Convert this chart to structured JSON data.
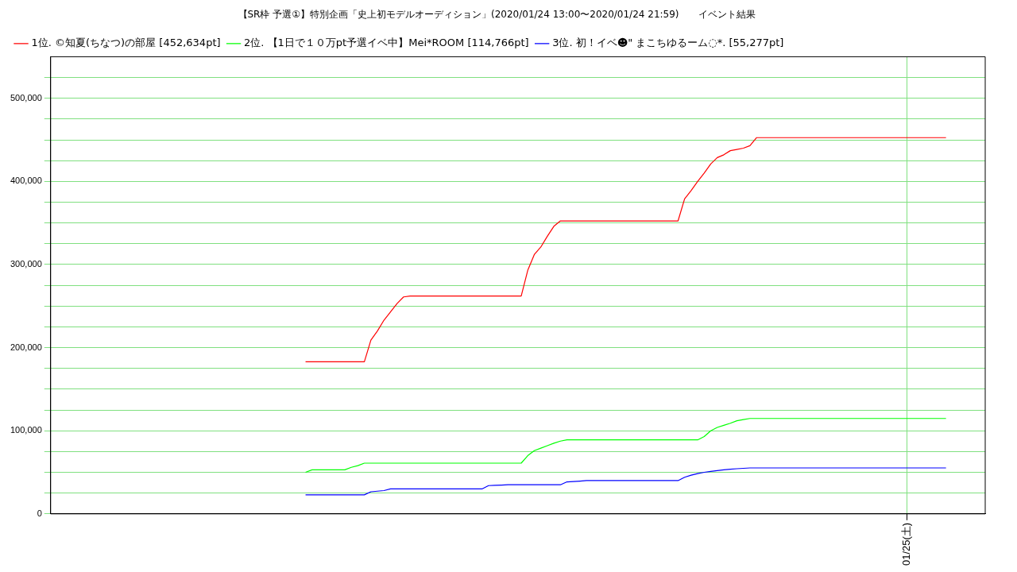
{
  "chart_data": {
    "type": "line",
    "title": "【SR枠 予選①】特別企画「史上初モデルオーディション」(2020/01/24 13:00〜2020/01/24 21:59)　　イベント結果",
    "categories": [
      null,
      null,
      null,
      null,
      null,
      null,
      null,
      null,
      null,
      null,
      null,
      null,
      null,
      null,
      null,
      null,
      null,
      null,
      null,
      null,
      null,
      null,
      null,
      null,
      null,
      null,
      null,
      null,
      null,
      null,
      null,
      null,
      null,
      null,
      null,
      null,
      null,
      null,
      null,
      null,
      null,
      null,
      null,
      null,
      null,
      null,
      null,
      null,
      null,
      null,
      null,
      null,
      null,
      null,
      null,
      null,
      null,
      null,
      null,
      null,
      null,
      null,
      null,
      null,
      null,
      null,
      null,
      null,
      null,
      null,
      null,
      null,
      null,
      null,
      null,
      null,
      null,
      null,
      null,
      null,
      null,
      null,
      null,
      null,
      null,
      null,
      null,
      null,
      null,
      null,
      null,
      null,
      null,
      null,
      null,
      null,
      null,
      null,
      null,
      null,
      null,
      null,
      null,
      null,
      null,
      null,
      null,
      null,
      null,
      null,
      null,
      null,
      null,
      null,
      null,
      null,
      null,
      null,
      null,
      null,
      null,
      null,
      null,
      null,
      null,
      null,
      null,
      null,
      null,
      null,
      null,
      "01/25(土)",
      null,
      null,
      null,
      null,
      null,
      null,
      null,
      null,
      null,
      null,
      null,
      null
    ],
    "ylim": [
      0,
      550000
    ],
    "yticks": [
      {
        "value": 0,
        "label": "0"
      },
      {
        "value": 25000,
        "label": null
      },
      {
        "value": 50000,
        "label": null
      },
      {
        "value": 75000,
        "label": null
      },
      {
        "value": 100000,
        "label": "100,000"
      },
      {
        "value": 125000,
        "label": null
      },
      {
        "value": 150000,
        "label": null
      },
      {
        "value": 175000,
        "label": null
      },
      {
        "value": 200000,
        "label": "200,000"
      },
      {
        "value": 225000,
        "label": null
      },
      {
        "value": 250000,
        "label": null
      },
      {
        "value": 275000,
        "label": null
      },
      {
        "value": 300000,
        "label": "300,000"
      },
      {
        "value": 325000,
        "label": null
      },
      {
        "value": 350000,
        "label": null
      },
      {
        "value": 375000,
        "label": null
      },
      {
        "value": 400000,
        "label": "400,000"
      },
      {
        "value": 425000,
        "label": null
      },
      {
        "value": 450000,
        "label": null
      },
      {
        "value": 475000,
        "label": null
      },
      {
        "value": 500000,
        "label": "500,000"
      },
      {
        "value": 525000,
        "label": null
      }
    ],
    "grid": true,
    "legend": "top left",
    "marker": "none",
    "line_style": "solid",
    "series": [
      {
        "name": "1位. ©知夏(ちなつ)の部屋 [452,634pt]",
        "color": "#ff0000",
        "values": [
          null,
          null,
          null,
          null,
          null,
          null,
          null,
          null,
          null,
          null,
          null,
          null,
          null,
          null,
          null,
          null,
          null,
          null,
          null,
          null,
          null,
          null,
          null,
          null,
          null,
          null,
          null,
          null,
          null,
          null,
          null,
          null,
          null,
          null,
          null,
          null,
          null,
          null,
          null,
          183000,
          183000,
          183000,
          183000,
          183000,
          183000,
          183000,
          183000,
          183000,
          183000,
          209000,
          220000,
          233000,
          243000,
          253000,
          261000,
          262000,
          262000,
          262000,
          262000,
          262000,
          262000,
          262000,
          262000,
          262000,
          262000,
          262000,
          262000,
          262000,
          262000,
          262000,
          262000,
          262000,
          262000,
          293000,
          312000,
          321000,
          334000,
          346000,
          352500,
          352500,
          352500,
          352500,
          352500,
          352500,
          352500,
          352500,
          352500,
          352500,
          352500,
          352500,
          352500,
          352500,
          352500,
          352500,
          352500,
          352500,
          352500,
          379000,
          389000,
          400000,
          410000,
          421000,
          428600,
          432000,
          437000,
          438500,
          440000,
          443000,
          452634,
          452634,
          452634,
          452634,
          452634,
          452634,
          452634,
          452634,
          452634,
          452634,
          452634,
          452634,
          452634,
          452634,
          452634,
          452634,
          452634,
          452634,
          452634,
          452634,
          452634,
          452634,
          452634,
          452634,
          452634,
          452634,
          452634,
          452634,
          452634,
          452634,
          null,
          null,
          null,
          null,
          null,
          null
        ]
      },
      {
        "name": "2位. 【1日で１０万pt予選イベ中】Mei*ROOM [114,766pt]",
        "color": "#00ff00",
        "values": [
          null,
          null,
          null,
          null,
          null,
          null,
          null,
          null,
          null,
          null,
          null,
          null,
          null,
          null,
          null,
          null,
          null,
          null,
          null,
          null,
          null,
          null,
          null,
          null,
          null,
          null,
          null,
          null,
          null,
          null,
          null,
          null,
          null,
          null,
          null,
          null,
          null,
          null,
          null,
          50000,
          53000,
          53000,
          53000,
          53000,
          53000,
          53000,
          56000,
          58000,
          61000,
          61000,
          61000,
          61000,
          61000,
          61000,
          61000,
          61000,
          61000,
          61000,
          61000,
          61000,
          61000,
          61000,
          61000,
          61000,
          61000,
          61000,
          61000,
          61000,
          61000,
          61000,
          61000,
          61000,
          61000,
          70000,
          76000,
          79000,
          82000,
          85000,
          87500,
          89000,
          89000,
          89000,
          89000,
          89000,
          89000,
          89000,
          89000,
          89000,
          89000,
          89000,
          89000,
          89000,
          89000,
          89000,
          89000,
          89000,
          89000,
          89000,
          89000,
          89000,
          93000,
          100000,
          104000,
          106500,
          109000,
          112000,
          113500,
          114766,
          114766,
          114766,
          114766,
          114766,
          114766,
          114766,
          114766,
          114766,
          114766,
          114766,
          114766,
          114766,
          114766,
          114766,
          114766,
          114766,
          114766,
          114766,
          114766,
          114766,
          114766,
          114766,
          114766,
          114766,
          114766,
          114766,
          114766,
          114766,
          114766,
          114766,
          null,
          null,
          null,
          null,
          null,
          null
        ]
      },
      {
        "name": "3位. 初！イベ☻\" まこちゆるーム◌*. [55,277pt]",
        "color": "#0000ff",
        "values": [
          null,
          null,
          null,
          null,
          null,
          null,
          null,
          null,
          null,
          null,
          null,
          null,
          null,
          null,
          null,
          null,
          null,
          null,
          null,
          null,
          null,
          null,
          null,
          null,
          null,
          null,
          null,
          null,
          null,
          null,
          null,
          null,
          null,
          null,
          null,
          null,
          null,
          null,
          null,
          22900,
          22900,
          22900,
          22900,
          22900,
          22900,
          22900,
          22900,
          22900,
          22900,
          26600,
          27300,
          28000,
          30000,
          30000,
          30000,
          30000,
          30000,
          30000,
          30000,
          30000,
          30000,
          30000,
          30000,
          30000,
          30000,
          30000,
          30000,
          34000,
          34300,
          34600,
          35000,
          35000,
          35000,
          35000,
          35000,
          35000,
          35000,
          35000,
          35000,
          38500,
          38900,
          39400,
          40000,
          40000,
          40000,
          40000,
          40000,
          40000,
          40000,
          40000,
          40000,
          40000,
          40000,
          40000,
          40000,
          40000,
          40000,
          44000,
          46500,
          48500,
          50000,
          51000,
          52000,
          53000,
          53700,
          54300,
          54800,
          55277,
          55277,
          55277,
          55277,
          55277,
          55277,
          55277,
          55277,
          55277,
          55277,
          55277,
          55277,
          55277,
          55277,
          55277,
          55277,
          55277,
          55277,
          55277,
          55277,
          55277,
          55277,
          55277,
          55277,
          55277,
          55277,
          55277,
          55277,
          55277,
          55277,
          55277,
          null,
          null,
          null,
          null,
          null,
          null
        ]
      }
    ]
  }
}
